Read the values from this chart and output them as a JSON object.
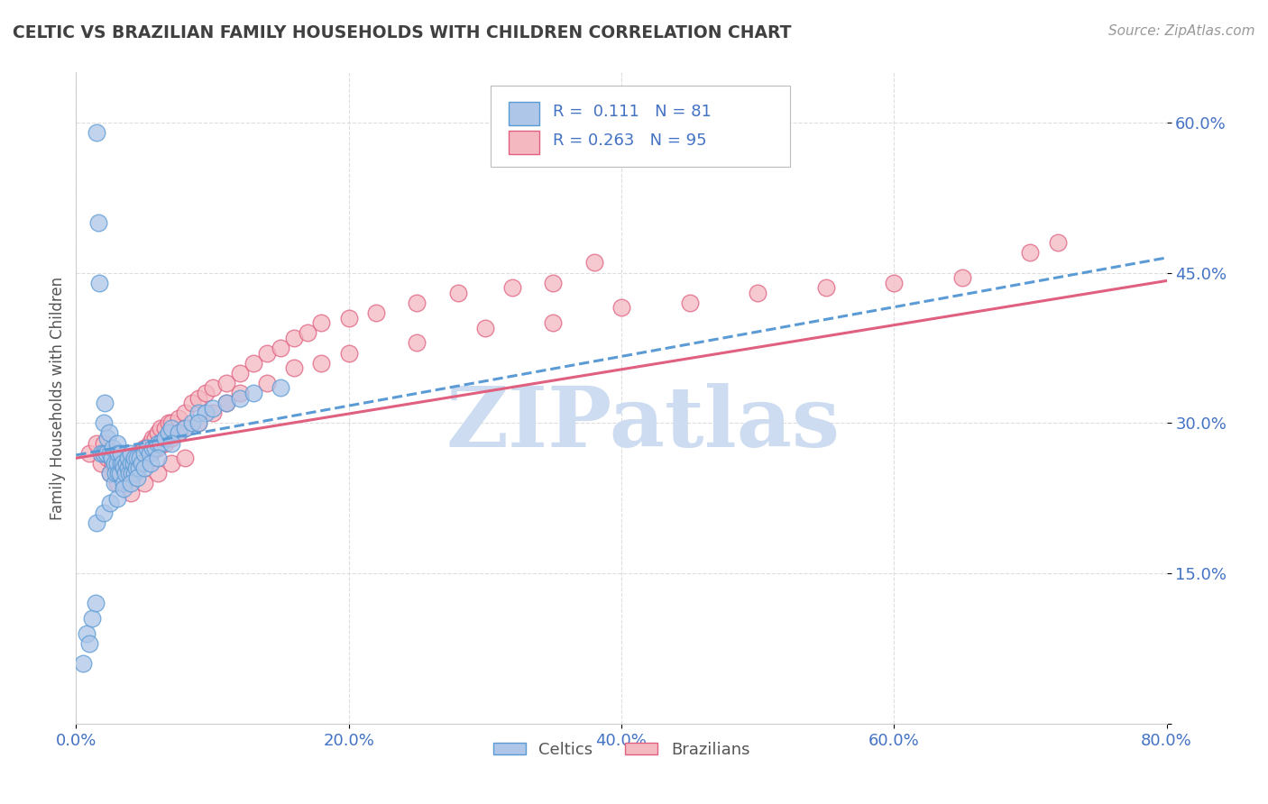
{
  "title": "CELTIC VS BRAZILIAN FAMILY HOUSEHOLDS WITH CHILDREN CORRELATION CHART",
  "source": "Source: ZipAtlas.com",
  "ylabel": "Family Households with Children",
  "xlim": [
    0.0,
    0.8
  ],
  "ylim": [
    0.0,
    0.65
  ],
  "xticks": [
    0.0,
    0.2,
    0.4,
    0.6,
    0.8
  ],
  "xtick_labels": [
    "0.0%",
    "20.0%",
    "40.0%",
    "60.0%",
    "80.0%"
  ],
  "yticks": [
    0.0,
    0.15,
    0.3,
    0.45,
    0.6
  ],
  "ytick_labels": [
    "",
    "15.0%",
    "30.0%",
    "45.0%",
    "60.0%"
  ],
  "celtic_color": "#aec6e8",
  "celtic_edge_color": "#5b9bd5",
  "brazilian_color": "#f4b8c1",
  "brazilian_edge_color": "#e06080",
  "celtic_line_color": "#5b9bd5",
  "brazilian_line_color": "#e06080",
  "legend_label1": "Celtics",
  "legend_label2": "Brazilians",
  "watermark": "ZIPatlas",
  "watermark_color": "#cddcf0",
  "title_color": "#404040",
  "axis_label_color": "#555555",
  "tick_color": "#4472c4",
  "background_color": "#ffffff",
  "grid_color": "#dddddd",
  "celtic_scatter_x": [
    0.005,
    0.008,
    0.01,
    0.012,
    0.014,
    0.015,
    0.016,
    0.017,
    0.018,
    0.02,
    0.02,
    0.021,
    0.022,
    0.023,
    0.024,
    0.025,
    0.025,
    0.026,
    0.027,
    0.028,
    0.028,
    0.029,
    0.03,
    0.03,
    0.031,
    0.031,
    0.032,
    0.033,
    0.033,
    0.034,
    0.035,
    0.035,
    0.036,
    0.037,
    0.038,
    0.038,
    0.039,
    0.04,
    0.04,
    0.041,
    0.042,
    0.043,
    0.043,
    0.044,
    0.045,
    0.046,
    0.047,
    0.048,
    0.05,
    0.052,
    0.054,
    0.056,
    0.058,
    0.06,
    0.062,
    0.065,
    0.068,
    0.07,
    0.075,
    0.08,
    0.085,
    0.09,
    0.095,
    0.1,
    0.11,
    0.12,
    0.13,
    0.15,
    0.015,
    0.02,
    0.025,
    0.03,
    0.035,
    0.04,
    0.045,
    0.05,
    0.055,
    0.06,
    0.07,
    0.09
  ],
  "celtic_scatter_y": [
    0.06,
    0.09,
    0.08,
    0.105,
    0.12,
    0.59,
    0.5,
    0.44,
    0.27,
    0.27,
    0.3,
    0.32,
    0.27,
    0.285,
    0.29,
    0.25,
    0.27,
    0.265,
    0.275,
    0.24,
    0.26,
    0.25,
    0.26,
    0.28,
    0.25,
    0.27,
    0.25,
    0.26,
    0.27,
    0.26,
    0.24,
    0.255,
    0.25,
    0.26,
    0.255,
    0.265,
    0.25,
    0.26,
    0.27,
    0.25,
    0.26,
    0.25,
    0.265,
    0.255,
    0.265,
    0.255,
    0.265,
    0.26,
    0.27,
    0.275,
    0.27,
    0.275,
    0.275,
    0.28,
    0.28,
    0.285,
    0.29,
    0.295,
    0.29,
    0.295,
    0.3,
    0.31,
    0.31,
    0.315,
    0.32,
    0.325,
    0.33,
    0.335,
    0.2,
    0.21,
    0.22,
    0.225,
    0.235,
    0.24,
    0.245,
    0.255,
    0.26,
    0.265,
    0.28,
    0.3
  ],
  "brazilian_scatter_x": [
    0.01,
    0.015,
    0.018,
    0.02,
    0.022,
    0.023,
    0.025,
    0.026,
    0.027,
    0.028,
    0.029,
    0.03,
    0.031,
    0.032,
    0.033,
    0.034,
    0.035,
    0.036,
    0.037,
    0.038,
    0.039,
    0.04,
    0.041,
    0.042,
    0.043,
    0.044,
    0.045,
    0.046,
    0.048,
    0.05,
    0.052,
    0.054,
    0.056,
    0.058,
    0.06,
    0.062,
    0.065,
    0.068,
    0.07,
    0.075,
    0.08,
    0.085,
    0.09,
    0.095,
    0.1,
    0.11,
    0.12,
    0.13,
    0.14,
    0.15,
    0.16,
    0.17,
    0.18,
    0.2,
    0.22,
    0.25,
    0.28,
    0.32,
    0.35,
    0.38,
    0.03,
    0.035,
    0.04,
    0.045,
    0.05,
    0.055,
    0.06,
    0.065,
    0.07,
    0.075,
    0.08,
    0.09,
    0.1,
    0.11,
    0.12,
    0.14,
    0.16,
    0.18,
    0.2,
    0.25,
    0.3,
    0.35,
    0.4,
    0.45,
    0.5,
    0.55,
    0.6,
    0.65,
    0.7,
    0.72,
    0.04,
    0.05,
    0.06,
    0.07,
    0.08
  ],
  "brazilian_scatter_y": [
    0.27,
    0.28,
    0.26,
    0.28,
    0.27,
    0.265,
    0.25,
    0.265,
    0.26,
    0.27,
    0.26,
    0.26,
    0.26,
    0.265,
    0.255,
    0.265,
    0.26,
    0.26,
    0.265,
    0.255,
    0.265,
    0.265,
    0.265,
    0.255,
    0.265,
    0.255,
    0.27,
    0.26,
    0.27,
    0.275,
    0.275,
    0.28,
    0.285,
    0.285,
    0.29,
    0.295,
    0.295,
    0.3,
    0.3,
    0.305,
    0.31,
    0.32,
    0.325,
    0.33,
    0.335,
    0.34,
    0.35,
    0.36,
    0.37,
    0.375,
    0.385,
    0.39,
    0.4,
    0.405,
    0.41,
    0.42,
    0.43,
    0.435,
    0.44,
    0.46,
    0.24,
    0.25,
    0.255,
    0.26,
    0.265,
    0.27,
    0.275,
    0.28,
    0.285,
    0.29,
    0.295,
    0.3,
    0.31,
    0.32,
    0.33,
    0.34,
    0.355,
    0.36,
    0.37,
    0.38,
    0.395,
    0.4,
    0.415,
    0.42,
    0.43,
    0.435,
    0.44,
    0.445,
    0.47,
    0.48,
    0.23,
    0.24,
    0.25,
    0.26,
    0.265
  ],
  "celtic_trend_x0": 0.0,
  "celtic_trend_y0": 0.268,
  "celtic_trend_x1": 0.8,
  "celtic_trend_y1": 0.465,
  "brazilian_trend_x0": 0.0,
  "brazilian_trend_y0": 0.265,
  "brazilian_trend_x1": 0.8,
  "brazilian_trend_y1": 0.442
}
